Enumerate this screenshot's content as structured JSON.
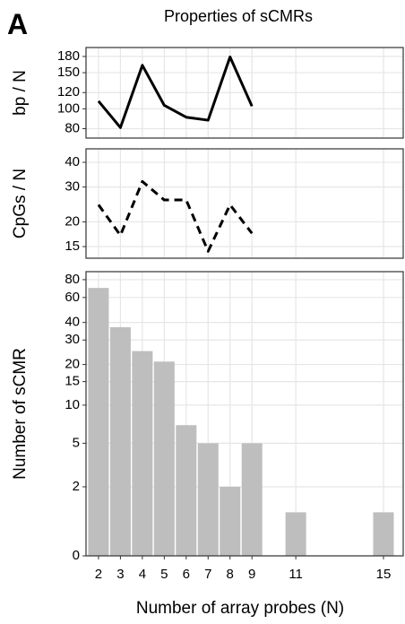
{
  "panel_label": "A",
  "chart_data": [
    {
      "type": "line",
      "title": "Properties of sCMRs",
      "ylabel": "bp / N",
      "x": [
        2,
        3,
        4,
        5,
        6,
        7,
        8,
        9
      ],
      "series": [
        {
          "values": [
            109,
            81,
            163,
            104,
            91,
            88,
            179,
            103
          ],
          "color": "#000000",
          "dash": false
        }
      ],
      "xlim": [
        1.43,
        15.9
      ],
      "ylim": [
        72,
        199
      ],
      "yscale": "log",
      "yticks": [
        80,
        100,
        120,
        150,
        180
      ],
      "grid": true
    },
    {
      "type": "line",
      "ylabel": "CpGs / N",
      "x": [
        2,
        3,
        4,
        5,
        6,
        7,
        8,
        9
      ],
      "series": [
        {
          "values": [
            24.4,
            17.1,
            32,
            25.8,
            25.8,
            14.2,
            24.4,
            17.5
          ],
          "color": "#000000",
          "dash": true
        }
      ],
      "xlim": [
        1.43,
        15.9
      ],
      "ylim": [
        13.1,
        46.8
      ],
      "yscale": "log",
      "yticks": [
        15,
        20,
        30,
        40
      ],
      "grid": true
    },
    {
      "type": "bar",
      "ylabel": "Number of sCMR",
      "xlabel": "Number of array probes (N)",
      "x": [
        2,
        3,
        4,
        5,
        6,
        7,
        8,
        9,
        11,
        15
      ],
      "values": [
        70,
        37,
        25,
        21,
        7,
        5,
        2,
        5,
        1,
        1
      ],
      "color": "#bebebe",
      "xlim": [
        1.43,
        15.9
      ],
      "ylim": [
        0,
        91
      ],
      "yscale": "log1p",
      "yticks": [
        0,
        2,
        5,
        10,
        15,
        20,
        30,
        40,
        60,
        80
      ],
      "xticks": [
        2,
        3,
        4,
        5,
        6,
        7,
        8,
        9,
        11,
        15
      ],
      "grid": true
    }
  ]
}
